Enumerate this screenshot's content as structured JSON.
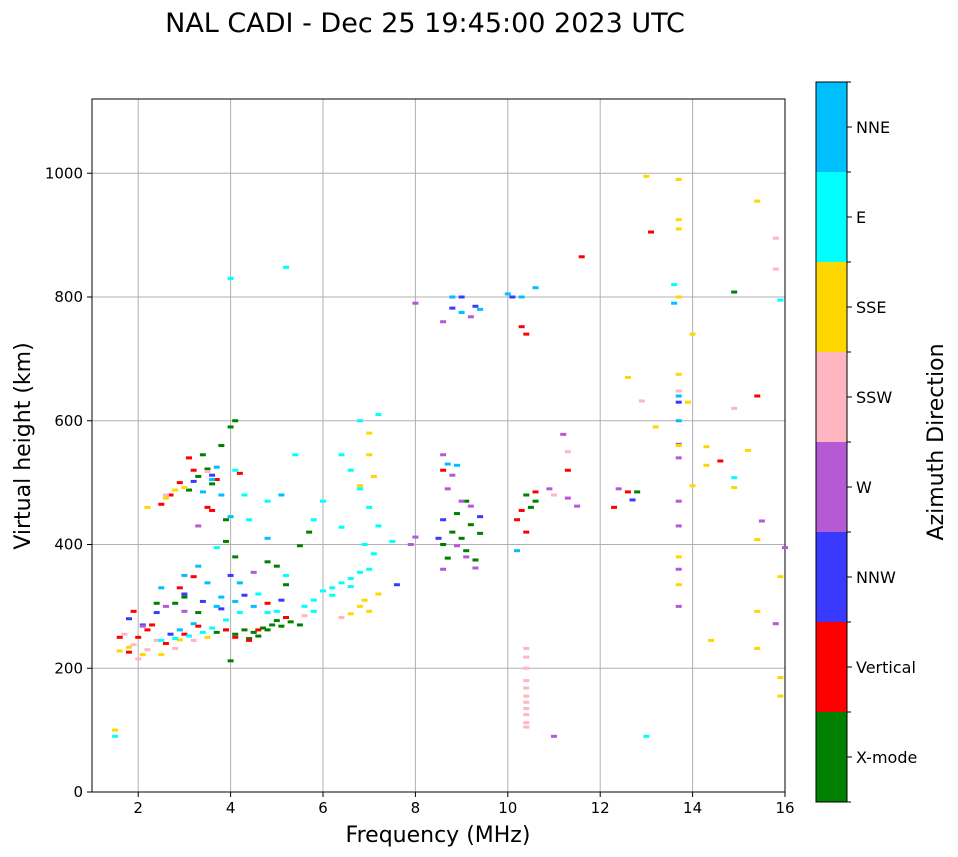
{
  "chart_data": {
    "type": "scatter",
    "title": "NAL CADI - Dec 25 19:45:00 2023 UTC",
    "xlabel": "Frequency (MHz)",
    "ylabel": "Virtual height (km)",
    "xlim": [
      1,
      16
    ],
    "ylim": [
      0,
      1120
    ],
    "xticks": [
      2,
      4,
      6,
      8,
      10,
      12,
      14,
      16
    ],
    "yticks": [
      0,
      200,
      400,
      600,
      800,
      1000
    ],
    "grid": true,
    "colorbar": {
      "label": "Azimuth Direction",
      "position": "right",
      "categories": [
        {
          "name": "X-mode",
          "color": "#008000"
        },
        {
          "name": "Vertical",
          "color": "#ff0000"
        },
        {
          "name": "NNW",
          "color": "#3a3aff"
        },
        {
          "name": "W",
          "color": "#b45ad4"
        },
        {
          "name": "SSW",
          "color": "#ffb6c1"
        },
        {
          "name": "SSE",
          "color": "#ffd700"
        },
        {
          "name": "E",
          "color": "#00ffff"
        },
        {
          "name": "NNE",
          "color": "#00bfff"
        }
      ]
    },
    "series": [
      {
        "name": "X-mode",
        "points": [
          [
            4.1,
            255
          ],
          [
            4.3,
            262
          ],
          [
            4.5,
            258
          ],
          [
            4.7,
            265
          ],
          [
            4.9,
            270
          ],
          [
            5.1,
            268
          ],
          [
            5.3,
            275
          ],
          [
            5.5,
            270
          ],
          [
            4.6,
            252
          ],
          [
            4.8,
            262
          ],
          [
            5.0,
            277
          ],
          [
            4.4,
            248
          ],
          [
            3.9,
            262
          ],
          [
            3.7,
            258
          ],
          [
            4.0,
            590
          ],
          [
            4.1,
            600
          ],
          [
            3.8,
            560
          ],
          [
            3.5,
            522
          ],
          [
            3.3,
            510
          ],
          [
            3.1,
            488
          ],
          [
            3.6,
            498
          ],
          [
            4.1,
            380
          ],
          [
            3.9,
            405
          ],
          [
            4.8,
            372
          ],
          [
            5.2,
            335
          ],
          [
            5.5,
            398
          ],
          [
            5.7,
            420
          ],
          [
            3.3,
            290
          ],
          [
            3.0,
            315
          ],
          [
            2.8,
            305
          ],
          [
            8.6,
            400
          ],
          [
            8.8,
            420
          ],
          [
            9.0,
            410
          ],
          [
            9.2,
            432
          ],
          [
            9.4,
            418
          ],
          [
            8.7,
            378
          ],
          [
            9.1,
            390
          ],
          [
            9.3,
            375
          ],
          [
            8.9,
            450
          ],
          [
            9.1,
            470
          ],
          [
            10.4,
            480
          ],
          [
            10.5,
            460
          ],
          [
            10.6,
            470
          ],
          [
            12.8,
            485
          ],
          [
            14.9,
            808
          ],
          [
            4.0,
            212
          ],
          [
            3.4,
            545
          ],
          [
            2.4,
            305
          ],
          [
            3.9,
            440
          ],
          [
            5.0,
            365
          ]
        ]
      },
      {
        "name": "Vertical",
        "points": [
          [
            2.5,
            465
          ],
          [
            2.7,
            480
          ],
          [
            3.1,
            540
          ],
          [
            3.2,
            520
          ],
          [
            2.9,
            500
          ],
          [
            3.7,
            505
          ],
          [
            4.2,
            515
          ],
          [
            3.6,
            455
          ],
          [
            4.1,
            250
          ],
          [
            3.9,
            262
          ],
          [
            3.3,
            268
          ],
          [
            3.0,
            255
          ],
          [
            2.6,
            240
          ],
          [
            2.2,
            262
          ],
          [
            1.9,
            292
          ],
          [
            1.6,
            250
          ],
          [
            1.8,
            226
          ],
          [
            2.3,
            270
          ],
          [
            4.4,
            245
          ],
          [
            4.6,
            262
          ],
          [
            2.9,
            330
          ],
          [
            3.2,
            348
          ],
          [
            8.6,
            520
          ],
          [
            10.2,
            440
          ],
          [
            10.3,
            455
          ],
          [
            10.3,
            752
          ],
          [
            10.4,
            740
          ],
          [
            10.4,
            420
          ],
          [
            10.6,
            485
          ],
          [
            11.3,
            520
          ],
          [
            11.6,
            865
          ],
          [
            12.3,
            460
          ],
          [
            12.6,
            485
          ],
          [
            13.1,
            905
          ],
          [
            14.6,
            535
          ],
          [
            15.4,
            640
          ],
          [
            4.8,
            305
          ],
          [
            5.2,
            282
          ],
          [
            3.5,
            460
          ],
          [
            2.0,
            250
          ]
        ]
      },
      {
        "name": "NNW",
        "points": [
          [
            2.4,
            290
          ],
          [
            2.1,
            270
          ],
          [
            1.8,
            280
          ],
          [
            3.4,
            308
          ],
          [
            3.8,
            296
          ],
          [
            4.3,
            318
          ],
          [
            3.2,
            502
          ],
          [
            3.6,
            512
          ],
          [
            8.8,
            782
          ],
          [
            9.0,
            800
          ],
          [
            9.3,
            785
          ],
          [
            8.5,
            410
          ],
          [
            8.6,
            440
          ],
          [
            10.1,
            800
          ],
          [
            13.7,
            630
          ],
          [
            12.7,
            472
          ],
          [
            3.0,
            320
          ],
          [
            4.0,
            350
          ],
          [
            7.6,
            335
          ],
          [
            2.7,
            255
          ],
          [
            5.1,
            310
          ],
          [
            9.4,
            445
          ]
        ]
      },
      {
        "name": "W",
        "points": [
          [
            8.6,
            545
          ],
          [
            8.8,
            512
          ],
          [
            8.7,
            490
          ],
          [
            9.0,
            470
          ],
          [
            9.2,
            462
          ],
          [
            8.9,
            398
          ],
          [
            9.1,
            380
          ],
          [
            9.3,
            362
          ],
          [
            8.6,
            360
          ],
          [
            8.0,
            412
          ],
          [
            7.9,
            400
          ],
          [
            8.0,
            790
          ],
          [
            8.6,
            760
          ],
          [
            9.2,
            768
          ],
          [
            11.0,
            90
          ],
          [
            11.3,
            475
          ],
          [
            11.5,
            462
          ],
          [
            11.2,
            578
          ],
          [
            12.4,
            490
          ],
          [
            13.7,
            562
          ],
          [
            13.7,
            540
          ],
          [
            13.7,
            470
          ],
          [
            13.7,
            430
          ],
          [
            13.7,
            360
          ],
          [
            13.7,
            300
          ],
          [
            15.5,
            438
          ],
          [
            16.0,
            395
          ],
          [
            15.8,
            272
          ],
          [
            2.1,
            268
          ],
          [
            3.3,
            430
          ],
          [
            4.5,
            355
          ],
          [
            3.0,
            292
          ],
          [
            10.9,
            490
          ],
          [
            2.6,
            300
          ]
        ]
      },
      {
        "name": "SSW",
        "points": [
          [
            1.9,
            238
          ],
          [
            2.2,
            230
          ],
          [
            2.4,
            245
          ],
          [
            2.0,
            215
          ],
          [
            2.8,
            232
          ],
          [
            3.2,
            245
          ],
          [
            5.6,
            285
          ],
          [
            6.4,
            282
          ],
          [
            10.4,
            232
          ],
          [
            10.4,
            218
          ],
          [
            10.4,
            200
          ],
          [
            10.4,
            180
          ],
          [
            10.4,
            168
          ],
          [
            10.4,
            155
          ],
          [
            10.4,
            145
          ],
          [
            10.4,
            135
          ],
          [
            10.4,
            125
          ],
          [
            10.4,
            112
          ],
          [
            10.4,
            105
          ],
          [
            11.0,
            480
          ],
          [
            11.3,
            550
          ],
          [
            12.9,
            632
          ],
          [
            13.7,
            648
          ],
          [
            14.9,
            620
          ],
          [
            15.8,
            845
          ],
          [
            15.8,
            895
          ],
          [
            2.6,
            480
          ],
          [
            3.5,
            518
          ],
          [
            1.7,
            255
          ]
        ]
      },
      {
        "name": "SSE",
        "points": [
          [
            1.6,
            228
          ],
          [
            1.8,
            234
          ],
          [
            2.1,
            222
          ],
          [
            2.5,
            222
          ],
          [
            2.9,
            246
          ],
          [
            2.6,
            475
          ],
          [
            2.8,
            488
          ],
          [
            3.0,
            492
          ],
          [
            6.8,
            300
          ],
          [
            7.0,
            292
          ],
          [
            7.2,
            320
          ],
          [
            6.6,
            288
          ],
          [
            6.9,
            310
          ],
          [
            7.0,
            580
          ],
          [
            6.8,
            495
          ],
          [
            7.1,
            510
          ],
          [
            7.0,
            545
          ],
          [
            12.6,
            670
          ],
          [
            13.0,
            995
          ],
          [
            13.2,
            590
          ],
          [
            13.7,
            990
          ],
          [
            13.7,
            925
          ],
          [
            13.7,
            910
          ],
          [
            13.7,
            800
          ],
          [
            13.7,
            675
          ],
          [
            13.7,
            560
          ],
          [
            13.7,
            380
          ],
          [
            13.7,
            335
          ],
          [
            13.9,
            630
          ],
          [
            14.0,
            740
          ],
          [
            14.0,
            495
          ],
          [
            14.3,
            558
          ],
          [
            14.3,
            528
          ],
          [
            14.4,
            245
          ],
          [
            14.9,
            492
          ],
          [
            15.2,
            552
          ],
          [
            15.4,
            955
          ],
          [
            15.4,
            408
          ],
          [
            15.4,
            292
          ],
          [
            15.4,
            232
          ],
          [
            15.9,
            348
          ],
          [
            15.9,
            185
          ],
          [
            15.9,
            155
          ],
          [
            1.5,
            100
          ],
          [
            3.5,
            250
          ],
          [
            2.2,
            460
          ]
        ]
      },
      {
        "name": "E",
        "points": [
          [
            5.6,
            300
          ],
          [
            5.8,
            310
          ],
          [
            6.0,
            325
          ],
          [
            6.2,
            330
          ],
          [
            6.4,
            338
          ],
          [
            6.6,
            345
          ],
          [
            6.8,
            355
          ],
          [
            7.0,
            360
          ],
          [
            5.8,
            292
          ],
          [
            6.2,
            318
          ],
          [
            6.6,
            332
          ],
          [
            4.8,
            290
          ],
          [
            5.0,
            292
          ],
          [
            4.2,
            290
          ],
          [
            3.9,
            278
          ],
          [
            3.6,
            265
          ],
          [
            3.4,
            258
          ],
          [
            3.1,
            252
          ],
          [
            2.8,
            248
          ],
          [
            2.5,
            245
          ],
          [
            6.0,
            470
          ],
          [
            6.4,
            545
          ],
          [
            6.6,
            520
          ],
          [
            6.8,
            490
          ],
          [
            7.0,
            460
          ],
          [
            7.2,
            430
          ],
          [
            7.2,
            610
          ],
          [
            6.8,
            600
          ],
          [
            5.8,
            440
          ],
          [
            6.4,
            428
          ],
          [
            4.3,
            480
          ],
          [
            4.1,
            520
          ],
          [
            4.4,
            440
          ],
          [
            4.8,
            470
          ],
          [
            5.2,
            350
          ],
          [
            4.6,
            320
          ],
          [
            7.5,
            405
          ],
          [
            4.0,
            830
          ],
          [
            5.2,
            848
          ],
          [
            13.0,
            90
          ],
          [
            13.6,
            820
          ],
          [
            14.9,
            508
          ],
          [
            15.9,
            795
          ],
          [
            1.5,
            90
          ],
          [
            7.1,
            385
          ],
          [
            6.9,
            400
          ],
          [
            3.7,
            395
          ],
          [
            5.4,
            545
          ]
        ]
      },
      {
        "name": "NNE",
        "points": [
          [
            3.4,
            485
          ],
          [
            3.6,
            505
          ],
          [
            3.8,
            480
          ],
          [
            3.7,
            525
          ],
          [
            4.0,
            445
          ],
          [
            3.3,
            365
          ],
          [
            3.5,
            338
          ],
          [
            3.8,
            315
          ],
          [
            4.2,
            338
          ],
          [
            2.9,
            262
          ],
          [
            3.2,
            272
          ],
          [
            3.7,
            300
          ],
          [
            4.1,
            308
          ],
          [
            4.5,
            300
          ],
          [
            8.7,
            530
          ],
          [
            8.9,
            528
          ],
          [
            8.8,
            800
          ],
          [
            9.0,
            775
          ],
          [
            9.4,
            780
          ],
          [
            10.0,
            805
          ],
          [
            10.3,
            800
          ],
          [
            10.6,
            815
          ],
          [
            13.7,
            600
          ],
          [
            13.7,
            640
          ],
          [
            13.6,
            790
          ],
          [
            10.2,
            390
          ],
          [
            2.5,
            330
          ],
          [
            3.0,
            350
          ],
          [
            4.8,
            410
          ],
          [
            5.1,
            480
          ]
        ]
      }
    ]
  }
}
